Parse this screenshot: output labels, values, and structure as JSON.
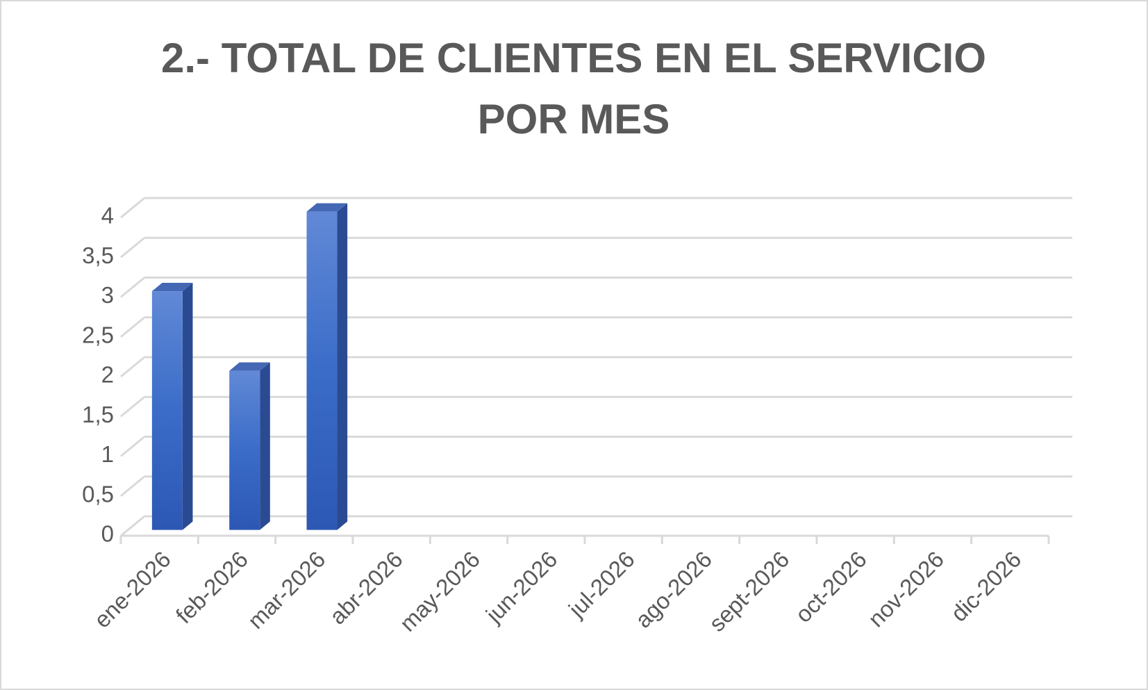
{
  "chart_data": {
    "type": "bar3d",
    "title": "2.- TOTAL DE CLIENTES EN EL SERVICIO POR MES",
    "categories": [
      "ene-2026",
      "feb-2026",
      "mar-2026",
      "abr-2026",
      "may-2026",
      "jun-2026",
      "jul-2026",
      "ago-2026",
      "sept-2026",
      "oct-2026",
      "nov-2026",
      "dic-2026"
    ],
    "values": [
      3,
      2,
      4,
      null,
      null,
      null,
      null,
      null,
      null,
      null,
      null,
      null
    ],
    "color": "#3a6cc8",
    "ylim": [
      0,
      4
    ],
    "yticks": [
      0,
      {
        "value": 0.5,
        "label": "0,5"
      },
      1,
      {
        "value": 1.5,
        "label": "1,5"
      },
      2,
      {
        "value": 2.5,
        "label": "2,5"
      },
      3,
      {
        "value": 3.5,
        "label": "3,5"
      },
      4
    ],
    "grid": true
  }
}
